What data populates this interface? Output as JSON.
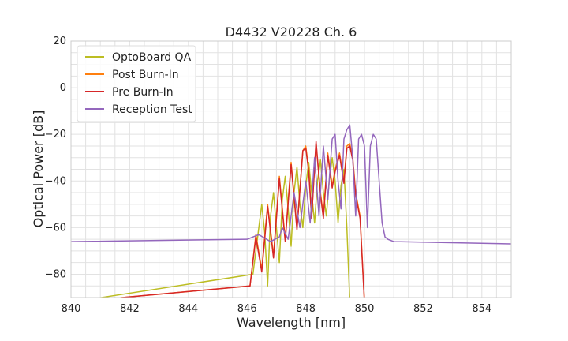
{
  "chart_data": {
    "type": "line",
    "title": "D4432 V20228 Ch. 6",
    "xlabel": "Wavelength [nm]",
    "ylabel": "Optical Power [dB]",
    "xlim": [
      840,
      855
    ],
    "ylim": [
      -90,
      20
    ],
    "xticks": [
      840,
      842,
      844,
      846,
      848,
      850,
      852,
      854
    ],
    "yticks": [
      20,
      0,
      -20,
      -40,
      -60,
      -80
    ],
    "xtick_labels": [
      "840",
      "842",
      "844",
      "846",
      "848",
      "850",
      "852",
      "854"
    ],
    "ytick_labels": [
      "20",
      "0",
      "−20",
      "−40",
      "−60",
      "−80"
    ],
    "grid": true,
    "legend_position": "top-left",
    "series": [
      {
        "name": "OptoBoard QA",
        "color": "#bcbd22",
        "x": [
          840.0,
          846.2,
          846.4,
          846.5,
          846.6,
          846.7,
          846.8,
          846.9,
          847.0,
          847.1,
          847.2,
          847.3,
          847.4,
          847.5,
          847.6,
          847.7,
          847.8,
          847.9,
          848.0,
          848.1,
          848.2,
          848.3,
          848.4,
          848.5,
          848.6,
          848.7,
          848.8,
          848.9,
          849.0,
          849.1,
          849.2,
          849.3,
          849.4,
          849.5,
          855.0
        ],
        "y": [
          -92,
          -80,
          -60,
          -50,
          -62,
          -85,
          -55,
          -45,
          -60,
          -75,
          -48,
          -38,
          -52,
          -68,
          -45,
          -34,
          -50,
          -60,
          -42,
          -32,
          -45,
          -58,
          -40,
          -31,
          -45,
          -55,
          -40,
          -30,
          -40,
          -58,
          -42,
          -35,
          -60,
          -92,
          -92
        ]
      },
      {
        "name": "Post Burn-In",
        "color": "#ff7f0e",
        "x": [
          840.0,
          846.1,
          846.3,
          846.5,
          846.7,
          846.9,
          847.1,
          847.3,
          847.5,
          847.7,
          847.9,
          848.0,
          848.1,
          848.2,
          848.35,
          848.5,
          848.6,
          848.75,
          848.9,
          849.0,
          849.15,
          849.3,
          849.4,
          849.5,
          849.6,
          849.7,
          849.85,
          850.0,
          855.0
        ],
        "y": [
          -92,
          -85,
          -63,
          -78,
          -50,
          -72,
          -38,
          -65,
          -32,
          -60,
          -27,
          -25,
          -35,
          -55,
          -24,
          -45,
          -55,
          -28,
          -42,
          -35,
          -28,
          -40,
          -25,
          -24,
          -30,
          -45,
          -55,
          -92,
          -92
        ]
      },
      {
        "name": "Pre Burn-In",
        "color": "#d62728",
        "x": [
          840.0,
          846.1,
          846.3,
          846.5,
          846.7,
          846.9,
          847.1,
          847.3,
          847.5,
          847.7,
          847.9,
          848.0,
          848.1,
          848.2,
          848.35,
          848.5,
          848.6,
          848.75,
          848.9,
          849.0,
          849.15,
          849.3,
          849.4,
          849.5,
          849.6,
          849.7,
          849.85,
          850.0,
          855.0
        ],
        "y": [
          -92,
          -85,
          -64,
          -79,
          -51,
          -73,
          -39,
          -66,
          -33,
          -61,
          -27,
          -26,
          -36,
          -56,
          -23,
          -46,
          -56,
          -29,
          -43,
          -36,
          -29,
          -41,
          -26,
          -25,
          -31,
          -46,
          -56,
          -92,
          -92
        ]
      },
      {
        "name": "Reception Test",
        "color": "#9467bd",
        "x": [
          840.0,
          846.0,
          846.4,
          846.8,
          847.1,
          847.2,
          847.4,
          847.6,
          847.8,
          848.0,
          848.15,
          848.3,
          848.45,
          848.6,
          848.75,
          848.9,
          849.0,
          849.1,
          849.2,
          849.3,
          849.4,
          849.5,
          849.6,
          849.7,
          849.8,
          849.9,
          850.0,
          850.1,
          850.2,
          850.3,
          850.4,
          850.5,
          850.6,
          850.7,
          850.8,
          851.0,
          855.0
        ],
        "y": [
          -66,
          -65,
          -63,
          -66,
          -64,
          -60,
          -65,
          -45,
          -60,
          -40,
          -58,
          -30,
          -55,
          -25,
          -48,
          -22,
          -20,
          -40,
          -52,
          -22,
          -18,
          -16,
          -30,
          -55,
          -22,
          -20,
          -25,
          -60,
          -25,
          -20,
          -22,
          -40,
          -58,
          -64,
          -65,
          -66,
          -67
        ]
      }
    ]
  }
}
